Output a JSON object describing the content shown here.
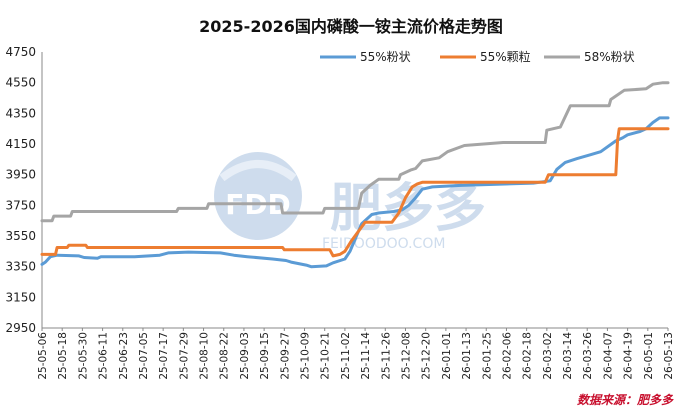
{
  "chart_data": {
    "type": "line",
    "title": "2025-2026国内磷酸一铵主流价格走势图",
    "ylim": [
      2950,
      4750
    ],
    "yticks": [
      2950,
      3150,
      3350,
      3550,
      3750,
      3950,
      4150,
      4350,
      4550,
      4750
    ],
    "xlim": [
      "25-05-06",
      "26-05-13"
    ],
    "xticks": [
      "25-05-06",
      "25-05-18",
      "25-05-30",
      "25-06-11",
      "25-06-23",
      "25-07-05",
      "25-07-17",
      "25-07-29",
      "25-08-10",
      "25-08-22",
      "25-09-03",
      "25-09-15",
      "25-09-27",
      "25-10-09",
      "25-10-21",
      "25-11-02",
      "25-11-14",
      "25-11-26",
      "25-12-08",
      "25-12-20",
      "26-01-01",
      "26-01-13",
      "26-01-25",
      "26-02-06",
      "26-02-18",
      "26-03-02",
      "26-03-14",
      "26-03-26",
      "26-04-07",
      "26-04-19",
      "26-05-01",
      "26-05-13"
    ],
    "grid": false,
    "legend_position": "top-right",
    "series": [
      {
        "name": "55%粉状",
        "color": "#5b9bd5",
        "points": [
          [
            "25-05-06",
            3365
          ],
          [
            "25-05-08",
            3380
          ],
          [
            "25-05-11",
            3415
          ],
          [
            "25-05-15",
            3425
          ],
          [
            "25-05-28",
            3420
          ],
          [
            "25-05-31",
            3410
          ],
          [
            "25-06-08",
            3405
          ],
          [
            "25-06-10",
            3415
          ],
          [
            "25-06-30",
            3415
          ],
          [
            "25-07-15",
            3425
          ],
          [
            "25-07-20",
            3440
          ],
          [
            "25-08-01",
            3445
          ],
          [
            "25-08-20",
            3440
          ],
          [
            "25-08-28",
            3425
          ],
          [
            "25-09-05",
            3415
          ],
          [
            "25-09-20",
            3400
          ],
          [
            "25-09-28",
            3390
          ],
          [
            "25-10-01",
            3380
          ],
          [
            "25-10-10",
            3360
          ],
          [
            "25-10-13",
            3350
          ],
          [
            "25-10-22",
            3355
          ],
          [
            "25-10-26",
            3375
          ],
          [
            "25-11-02",
            3400
          ],
          [
            "25-11-05",
            3450
          ],
          [
            "25-11-12",
            3630
          ],
          [
            "25-11-18",
            3690
          ],
          [
            "25-11-22",
            3700
          ],
          [
            "25-12-01",
            3710
          ],
          [
            "25-12-06",
            3720
          ],
          [
            "25-12-10",
            3750
          ],
          [
            "25-12-14",
            3800
          ],
          [
            "25-12-18",
            3855
          ],
          [
            "25-12-24",
            3870
          ],
          [
            "26-01-10",
            3880
          ],
          [
            "26-02-22",
            3895
          ],
          [
            "26-03-04",
            3910
          ],
          [
            "26-03-08",
            3985
          ],
          [
            "26-03-13",
            4030
          ],
          [
            "26-03-20",
            4055
          ],
          [
            "26-03-28",
            4080
          ],
          [
            "26-04-03",
            4100
          ],
          [
            "26-04-12",
            4170
          ],
          [
            "26-04-16",
            4190
          ],
          [
            "26-04-19",
            4210
          ],
          [
            "26-04-26",
            4230
          ],
          [
            "26-04-30",
            4250
          ],
          [
            "26-05-04",
            4290
          ],
          [
            "26-05-08",
            4320
          ],
          [
            "26-05-13",
            4320
          ]
        ]
      },
      {
        "name": "55%颗粒",
        "color": "#ed7d31",
        "points": [
          [
            "25-05-06",
            3430
          ],
          [
            "25-05-14",
            3430
          ],
          [
            "25-05-15",
            3475
          ],
          [
            "25-05-21",
            3475
          ],
          [
            "25-05-22",
            3490
          ],
          [
            "25-06-01",
            3490
          ],
          [
            "25-06-02",
            3475
          ],
          [
            "25-09-26",
            3475
          ],
          [
            "25-09-27",
            3460
          ],
          [
            "25-10-24",
            3460
          ],
          [
            "25-10-26",
            3420
          ],
          [
            "25-10-30",
            3430
          ],
          [
            "25-11-02",
            3450
          ],
          [
            "25-11-06",
            3520
          ],
          [
            "25-11-10",
            3580
          ],
          [
            "25-11-14",
            3640
          ],
          [
            "25-11-30",
            3640
          ],
          [
            "25-12-04",
            3700
          ],
          [
            "25-12-08",
            3800
          ],
          [
            "25-12-12",
            3870
          ],
          [
            "25-12-15",
            3890
          ],
          [
            "25-12-18",
            3900
          ],
          [
            "26-03-01",
            3900
          ],
          [
            "26-03-03",
            3950
          ],
          [
            "26-04-12",
            3950
          ],
          [
            "26-04-13",
            4170
          ],
          [
            "26-04-14",
            4250
          ],
          [
            "26-05-13",
            4250
          ]
        ]
      },
      {
        "name": "58%粉状",
        "color": "#a5a5a5",
        "points": [
          [
            "25-05-06",
            3650
          ],
          [
            "25-05-12",
            3650
          ],
          [
            "25-05-13",
            3680
          ],
          [
            "25-05-23",
            3680
          ],
          [
            "25-05-24",
            3710
          ],
          [
            "25-07-25",
            3710
          ],
          [
            "25-07-26",
            3730
          ],
          [
            "25-08-12",
            3730
          ],
          [
            "25-08-13",
            3760
          ],
          [
            "25-09-25",
            3760
          ],
          [
            "25-09-26",
            3700
          ],
          [
            "25-10-20",
            3700
          ],
          [
            "25-10-21",
            3730
          ],
          [
            "25-11-10",
            3730
          ],
          [
            "25-11-12",
            3830
          ],
          [
            "25-11-17",
            3880
          ],
          [
            "25-11-22",
            3920
          ],
          [
            "25-12-04",
            3920
          ],
          [
            "25-12-05",
            3950
          ],
          [
            "25-12-11",
            3980
          ],
          [
            "25-12-14",
            3990
          ],
          [
            "25-12-18",
            4040
          ],
          [
            "25-12-28",
            4060
          ],
          [
            "26-01-02",
            4100
          ],
          [
            "26-01-12",
            4140
          ],
          [
            "26-02-04",
            4160
          ],
          [
            "26-03-01",
            4160
          ],
          [
            "26-03-02",
            4240
          ],
          [
            "26-03-10",
            4260
          ],
          [
            "26-03-16",
            4400
          ],
          [
            "26-04-08",
            4400
          ],
          [
            "26-04-09",
            4440
          ],
          [
            "26-04-17",
            4500
          ],
          [
            "26-04-30",
            4510
          ],
          [
            "26-05-04",
            4540
          ],
          [
            "26-05-10",
            4550
          ],
          [
            "26-05-13",
            4550
          ]
        ]
      }
    ]
  },
  "watermark": {
    "logo_text": "FDD",
    "brand_text": "肥多多",
    "url_text": "FEIDOODOO.COM"
  },
  "source_note": "数据来源：肥多多"
}
